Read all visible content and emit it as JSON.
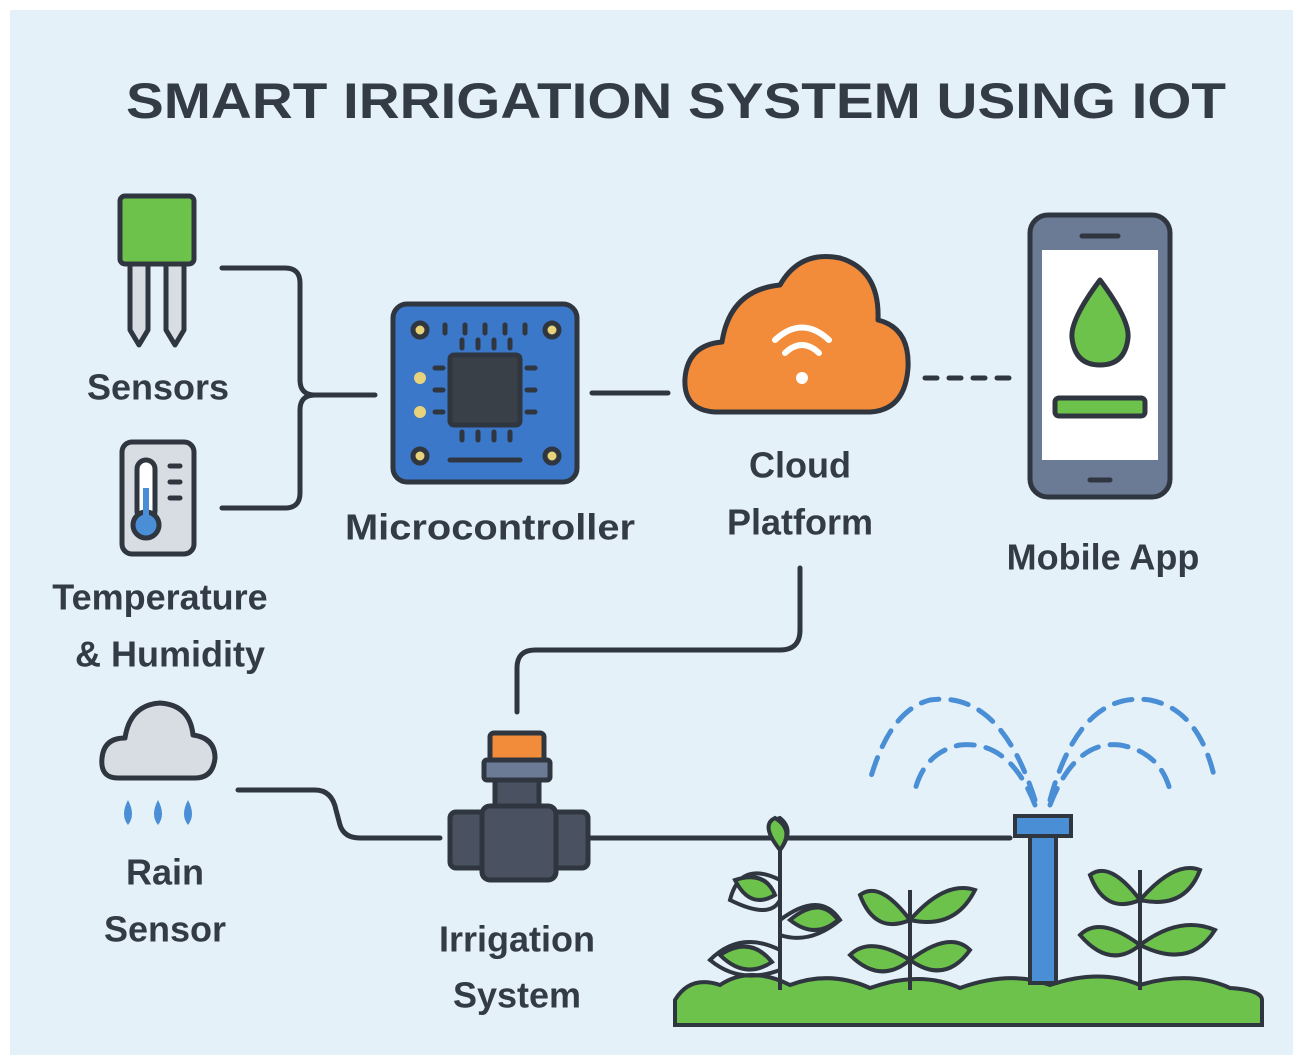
{
  "title": "SMART IRRIGATION SYSTEM USING IOT",
  "nodes": [
    {
      "label": [
        "Sensors"
      ]
    },
    {
      "label": [
        "Temperature",
        "& Humidity"
      ]
    },
    {
      "label": [
        "Rain",
        "Sensor"
      ]
    },
    {
      "label": [
        "Microcontroller"
      ]
    },
    {
      "label": [
        "Cloud",
        "Platform"
      ]
    },
    {
      "label": [
        "Mobile App"
      ]
    },
    {
      "label": [
        "Irrigation",
        "System"
      ]
    }
  ]
}
